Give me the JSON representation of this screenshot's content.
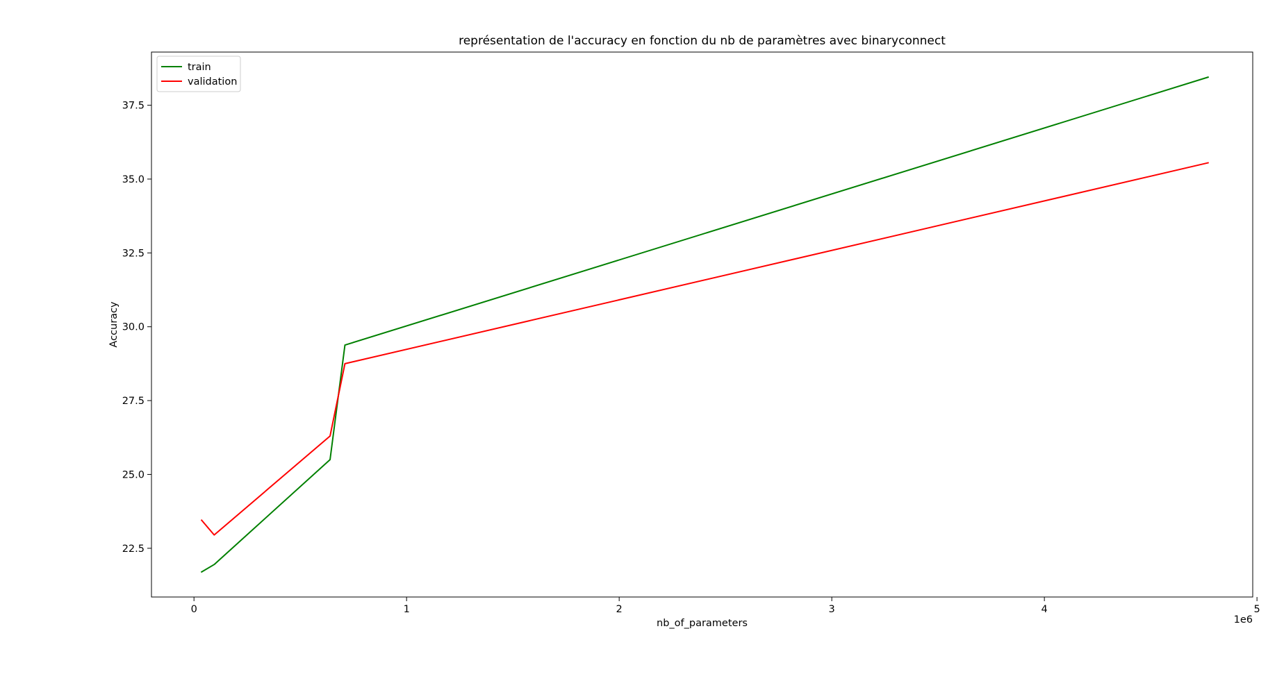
{
  "chart_data": {
    "type": "line",
    "title": "représentation de l'accuracy en fonction du nb de paramètres avec binaryconnect",
    "xlabel": "nb_of_parameters",
    "ylabel": "Accuracy",
    "x_offset_label": "1e6",
    "x_scale": 1000000,
    "xlim": [
      -200000,
      4980000
    ],
    "ylim": [
      20.85,
      39.3
    ],
    "xticks": [
      0,
      1000000,
      2000000,
      3000000,
      4000000,
      5000000
    ],
    "xtick_labels": [
      "0",
      "1",
      "2",
      "3",
      "4",
      "5"
    ],
    "yticks": [
      22.5,
      25.0,
      27.5,
      30.0,
      32.5,
      35.0,
      37.5
    ],
    "ytick_labels": [
      "22.5",
      "25.0",
      "27.5",
      "30.0",
      "32.5",
      "35.0",
      "37.5"
    ],
    "legend_position": "upper-left",
    "x": [
      36000,
      95000,
      640000,
      710000,
      4770000
    ],
    "series": [
      {
        "name": "train",
        "color": "#008000",
        "values": [
          21.7,
          21.95,
          25.5,
          29.38,
          38.45
        ]
      },
      {
        "name": "validation",
        "color": "#ff0000",
        "values": [
          23.45,
          22.95,
          26.3,
          28.75,
          35.55
        ]
      }
    ]
  }
}
